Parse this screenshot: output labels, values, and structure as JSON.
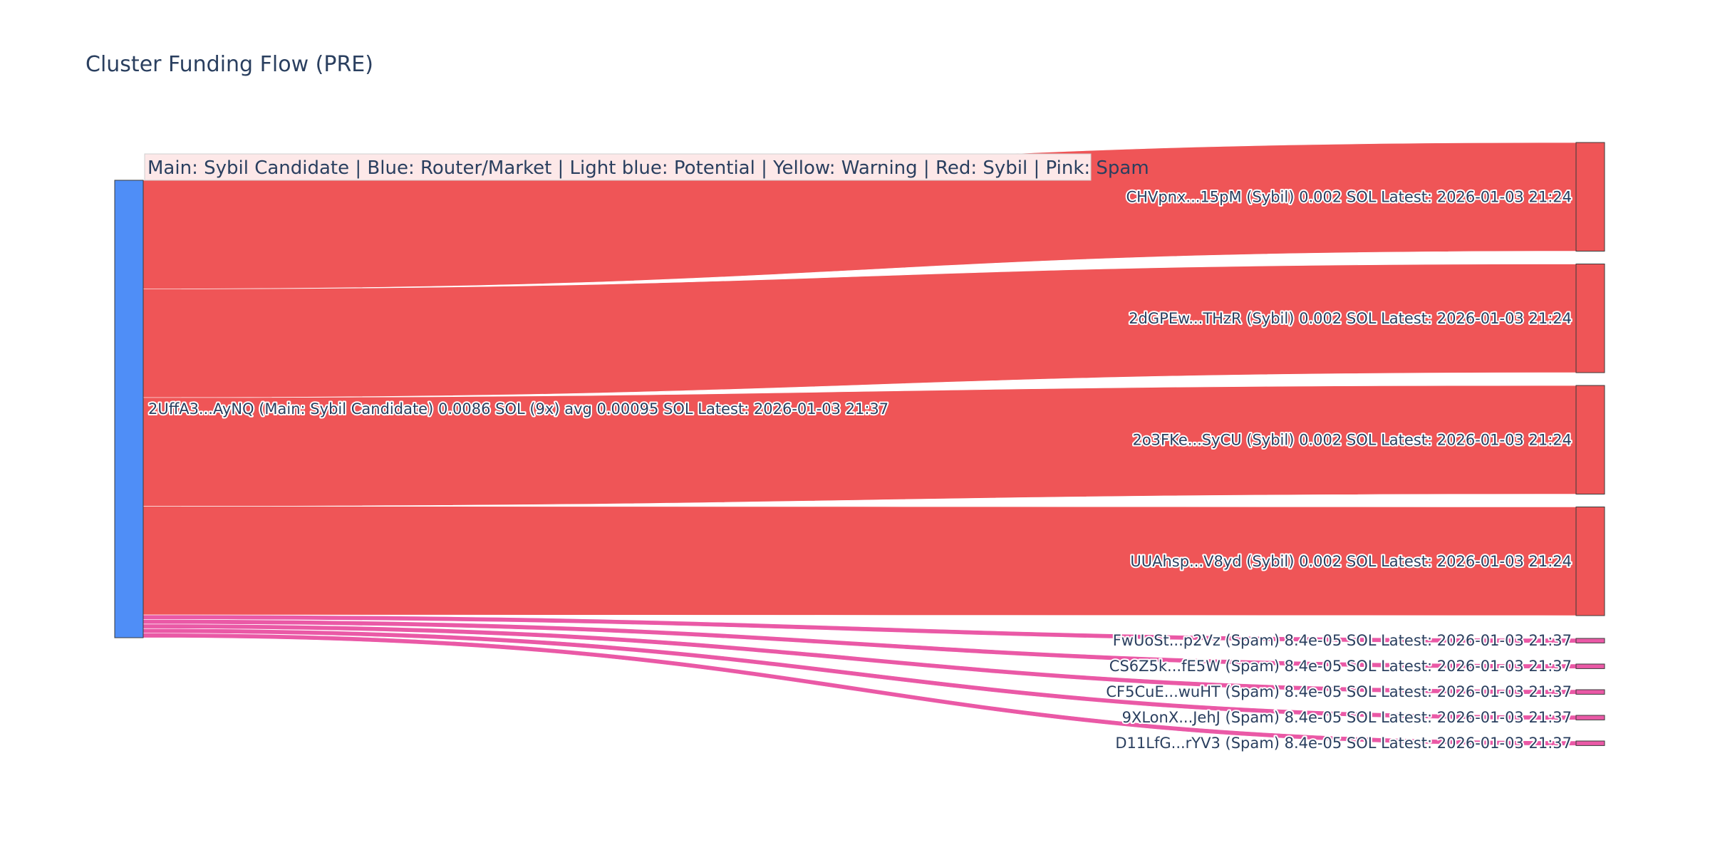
{
  "title": "Cluster Funding Flow (PRE)",
  "legend": "Main: Sybil Candidate  |  Blue: Router/Market | Light blue: Potential | Yellow: Warning | Red: Sybil | Pink: Spam",
  "colors": {
    "main_node": "#4f8ef7",
    "sybil": "#ef5557",
    "spam": "#ea59a6",
    "node_border": "#3a3a3a",
    "legend_bg": "#fde8e8"
  },
  "chart_data": {
    "type": "sankey",
    "title": "Cluster Funding Flow (PRE)",
    "source": {
      "label": "2UffA3...AyNQ (Main: Sybil Candidate) 0.0086 SOL (9x) avg 0.00095 SOL Latest: 2026-01-03 21:37",
      "category": "Main: Sybil Candidate"
    },
    "targets": [
      {
        "label": "CHVpnx...15pM (Sybil) 0.002 SOL Latest: 2026-01-03 21:24",
        "category": "Sybil",
        "value": 0.002
      },
      {
        "label": "2dGPEw...THzR (Sybil) 0.002 SOL Latest: 2026-01-03 21:24",
        "category": "Sybil",
        "value": 0.002
      },
      {
        "label": "2o3FKe...SyCU (Sybil) 0.002 SOL Latest: 2026-01-03 21:24",
        "category": "Sybil",
        "value": 0.002
      },
      {
        "label": "UUAhsp...V8yd (Sybil) 0.002 SOL Latest: 2026-01-03 21:24",
        "category": "Sybil",
        "value": 0.002
      },
      {
        "label": "FwUoSt...p2Vz (Spam) 8.4e-05 SOL Latest: 2026-01-03 21:37",
        "category": "Spam",
        "value": 8.4e-05
      },
      {
        "label": "CS6Z5k...fE5W (Spam) 8.4e-05 SOL Latest: 2026-01-03 21:37",
        "category": "Spam",
        "value": 8.4e-05
      },
      {
        "label": "CF5CuE...wuHT (Spam) 8.4e-05 SOL Latest: 2026-01-03 21:37",
        "category": "Spam",
        "value": 8.4e-05
      },
      {
        "label": "9XLonX...JehJ (Spam) 8.4e-05 SOL Latest: 2026-01-03 21:37",
        "category": "Spam",
        "value": 8.4e-05
      },
      {
        "label": "D11LfG...rYV3 (Spam) 8.4e-05 SOL Latest: 2026-01-03 21:37",
        "category": "Spam",
        "value": 8.4e-05
      }
    ]
  }
}
